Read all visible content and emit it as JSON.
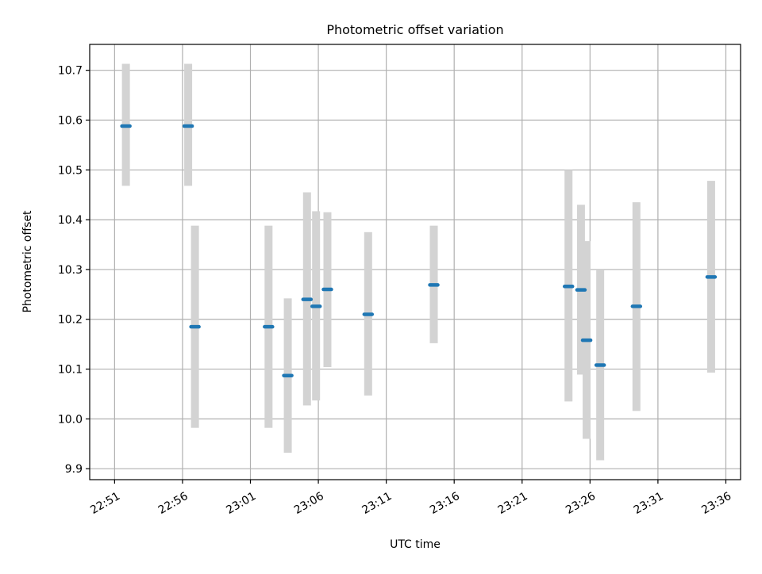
{
  "chart_data": {
    "type": "scatter",
    "title": "Photometric offset variation",
    "xlabel": "UTC time",
    "ylabel": "Photometric offset",
    "x_tick_labels": [
      "22:51",
      "22:56",
      "23:01",
      "23:06",
      "23:11",
      "23:16",
      "23:21",
      "23:26",
      "23:31",
      "23:36"
    ],
    "y_tick_labels": [
      "9.9",
      "10.0",
      "10.1",
      "10.2",
      "10.3",
      "10.4",
      "10.5",
      "10.6",
      "10.7"
    ],
    "xlim": [
      "22:49:10",
      "23:37:05"
    ],
    "ylim": [
      9.878,
      10.752
    ],
    "grid": true,
    "series": [
      {
        "color": "#1f77b4",
        "errorbar_color": "#d3d3d3",
        "points": [
          {
            "x": "22:51:50",
            "y": 10.588,
            "ylow": 10.468,
            "yhigh": 10.713
          },
          {
            "x": "22:56:25",
            "y": 10.588,
            "ylow": 10.468,
            "yhigh": 10.713
          },
          {
            "x": "22:56:55",
            "y": 10.185,
            "ylow": 9.982,
            "yhigh": 10.388
          },
          {
            "x": "23:02:20",
            "y": 10.185,
            "ylow": 9.982,
            "yhigh": 10.388
          },
          {
            "x": "23:03:45",
            "y": 10.087,
            "ylow": 9.932,
            "yhigh": 10.242
          },
          {
            "x": "23:05:10",
            "y": 10.24,
            "ylow": 10.027,
            "yhigh": 10.455
          },
          {
            "x": "23:05:50",
            "y": 10.226,
            "ylow": 10.037,
            "yhigh": 10.417
          },
          {
            "x": "23:06:40",
            "y": 10.26,
            "ylow": 10.104,
            "yhigh": 10.415
          },
          {
            "x": "23:09:40",
            "y": 10.21,
            "ylow": 10.047,
            "yhigh": 10.375
          },
          {
            "x": "23:14:30",
            "y": 10.269,
            "ylow": 10.152,
            "yhigh": 10.388
          },
          {
            "x": "23:24:25",
            "y": 10.266,
            "ylow": 10.035,
            "yhigh": 10.5
          },
          {
            "x": "23:25:20",
            "y": 10.259,
            "ylow": 10.089,
            "yhigh": 10.43
          },
          {
            "x": "23:25:45",
            "y": 10.158,
            "ylow": 9.96,
            "yhigh": 10.357
          },
          {
            "x": "23:26:45",
            "y": 10.108,
            "ylow": 9.917,
            "yhigh": 10.3
          },
          {
            "x": "23:29:25",
            "y": 10.226,
            "ylow": 10.016,
            "yhigh": 10.435
          },
          {
            "x": "23:34:55",
            "y": 10.285,
            "ylow": 10.093,
            "yhigh": 10.478
          }
        ]
      }
    ]
  }
}
